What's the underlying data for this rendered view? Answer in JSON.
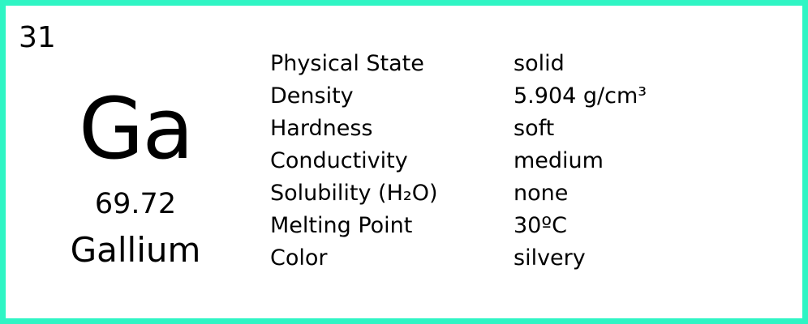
{
  "element": {
    "atomic_number": "31",
    "symbol": "Ga",
    "atomic_mass": "69.72",
    "name": "Gallium"
  },
  "properties": [
    {
      "label": "Physical State",
      "value": "solid"
    },
    {
      "label": "Density",
      "value": "5.904 g/cm³"
    },
    {
      "label": "Hardness",
      "value": "soft"
    },
    {
      "label": "Conductivity",
      "value": "medium"
    },
    {
      "label": "Solubility (H₂O)",
      "value": "none"
    },
    {
      "label": "Melting Point",
      "value": "30ºC"
    },
    {
      "label": "Color",
      "value": "silvery"
    }
  ],
  "colors": {
    "border": "#2ff5c4",
    "text": "#000000",
    "background": "#ffffff"
  }
}
